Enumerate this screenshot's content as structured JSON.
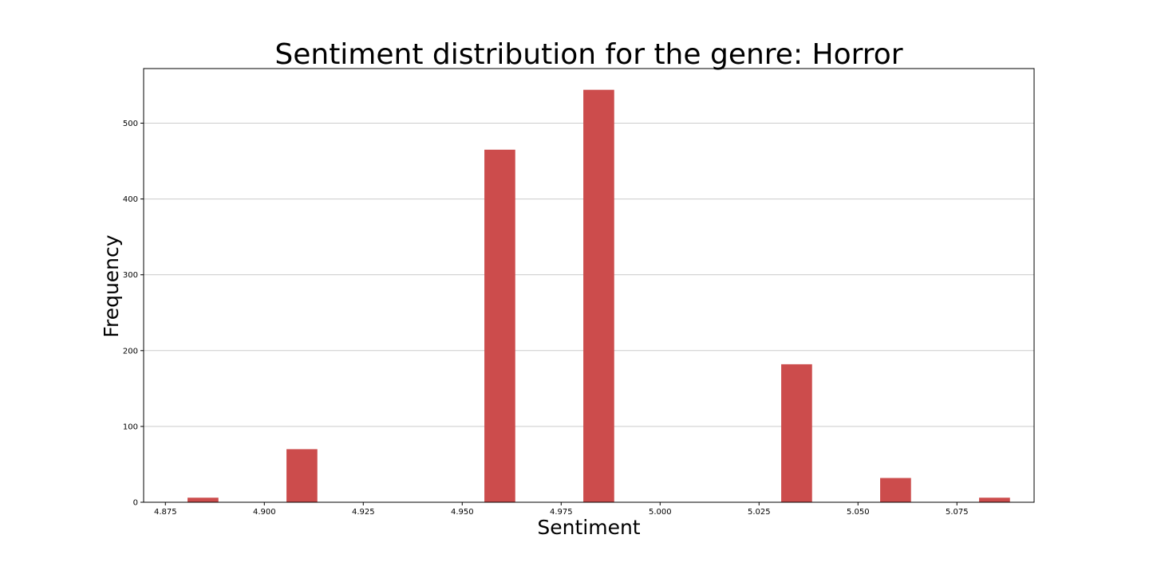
{
  "chart_data": {
    "type": "bar",
    "title": "Sentiment distribution for the genre: Horror",
    "xlabel": "Sentiment",
    "ylabel": "Frequency",
    "xlim": [
      4.8695,
      5.0945
    ],
    "ylim": [
      0,
      572
    ],
    "x_ticks": [
      "4.875",
      "4.900",
      "4.925",
      "4.950",
      "4.975",
      "5.000",
      "5.025",
      "5.050",
      "5.075"
    ],
    "x_tick_values": [
      4.875,
      4.9,
      4.925,
      4.95,
      4.975,
      5.0,
      5.025,
      5.05,
      5.075
    ],
    "y_ticks": [
      "0",
      "100",
      "200",
      "300",
      "400",
      "500"
    ],
    "y_tick_values": [
      0,
      100,
      200,
      300,
      400,
      500
    ],
    "bar_width": 0.0078,
    "x": [
      4.8845,
      4.9095,
      4.9345,
      4.9595,
      4.9845,
      5.0095,
      5.0345,
      5.0595,
      5.0845
    ],
    "values": [
      6,
      70,
      0,
      465,
      544,
      0,
      182,
      32,
      6
    ],
    "color": "#cc4c4c",
    "grid": "y",
    "legend": "none"
  }
}
